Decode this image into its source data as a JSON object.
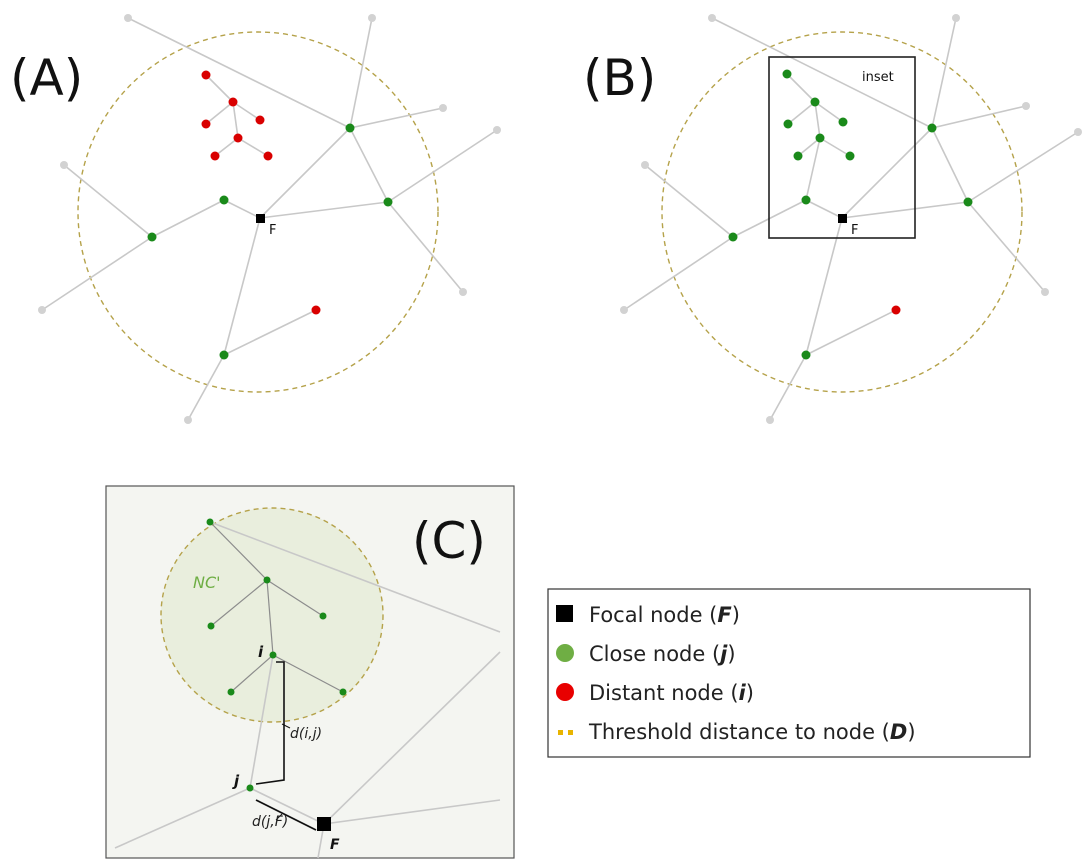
{
  "panels": {
    "a": {
      "label": "(A)",
      "focal_label": "F"
    },
    "b": {
      "label": "(B)",
      "focal_label": "F",
      "inset_label": "inset"
    },
    "c": {
      "label": "(C)",
      "nc_label": "NC'",
      "i_label": "i",
      "j_label": "j",
      "f_label": "F",
      "dij_label": "d(i,j)",
      "djf_label": "d(j,F)"
    }
  },
  "legend": {
    "items": [
      {
        "symbol": "black-square",
        "text": "Focal node (",
        "var": "F",
        "close": ")"
      },
      {
        "symbol": "green-circle",
        "text": "Close node (",
        "var": "j",
        "close": ")"
      },
      {
        "symbol": "red-circle",
        "text": "Distant node (",
        "var": "i",
        "close": ")"
      },
      {
        "symbol": "yellow-dots",
        "text": "Threshold distance to node (",
        "var": "D",
        "close": ")"
      }
    ]
  },
  "colors": {
    "focal": "#000000",
    "close": "#1a8a1a",
    "distant": "#d90000",
    "threshold": "#e8b400",
    "edge": "#c8c8c8"
  }
}
